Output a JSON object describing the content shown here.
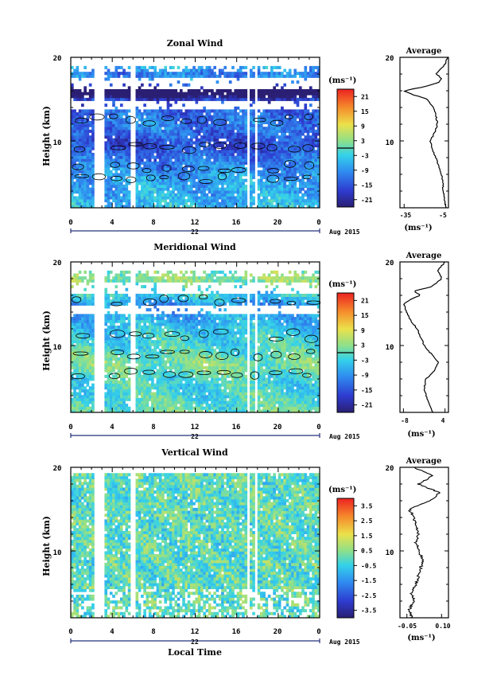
{
  "figure": {
    "x_axis_title": "Local Time",
    "date_label": "22",
    "date_suffix": "Aug 2015",
    "height_label": "Height (km)",
    "x_ticks": [
      "0",
      "4",
      "8",
      "12",
      "16",
      "20",
      "0"
    ],
    "y_ticks": [
      "20",
      "10"
    ]
  },
  "chart_data": [
    {
      "type": "heatmap",
      "title": "Zonal Wind",
      "ylabel": "Height (km)",
      "xlabel": "Local Time",
      "xlim": [
        0,
        24
      ],
      "ylim": [
        2,
        20
      ],
      "contours": true,
      "colorbar": {
        "unit": "(ms⁻¹)",
        "ticks": [
          "21",
          "15",
          "9",
          "3",
          "-3",
          "-9",
          "-15",
          "-21"
        ],
        "range": [
          -24,
          24
        ]
      },
      "average_profile": {
        "title": "Average",
        "xlabel": "(ms⁻¹)",
        "xticks": [
          "-35",
          "-5"
        ],
        "xlim": [
          -38,
          -3
        ],
        "heights": [
          2,
          3,
          4,
          5,
          6,
          7,
          8,
          9,
          10,
          11,
          12,
          13,
          14,
          15,
          15.5,
          16,
          16.5,
          17,
          17.5,
          18,
          19,
          20
        ],
        "values": [
          -5,
          -6,
          -7,
          -7,
          -8,
          -10,
          -12,
          -15,
          -16,
          -13,
          -11,
          -12,
          -14,
          -18,
          -28,
          -35,
          -20,
          -10,
          -8,
          -12,
          -6,
          -4
        ]
      }
    },
    {
      "type": "heatmap",
      "title": "Meridional Wind",
      "ylabel": "Height (km)",
      "xlabel": "Local Time",
      "xlim": [
        0,
        24
      ],
      "ylim": [
        2,
        20
      ],
      "contours": true,
      "colorbar": {
        "unit": "(ms⁻¹)",
        "ticks": [
          "21",
          "15",
          "9",
          "3",
          "-3",
          "-9",
          "-15",
          "-21"
        ],
        "range": [
          -24,
          24
        ]
      },
      "average_profile": {
        "title": "Average",
        "xlabel": "(ms⁻¹)",
        "xticks": [
          "-8",
          "4"
        ],
        "xlim": [
          -9,
          5
        ],
        "heights": [
          2,
          3,
          4,
          5,
          6,
          7,
          8,
          9,
          10,
          11,
          12,
          13,
          14,
          15,
          15.5,
          16,
          16.5,
          17,
          18,
          19,
          20
        ],
        "values": [
          0.5,
          -0.5,
          -1.5,
          -2,
          -1.5,
          1,
          2,
          0,
          -2,
          -3,
          -4,
          -6,
          -7,
          -8,
          -6,
          -3,
          -5,
          0,
          3,
          2,
          4
        ]
      }
    },
    {
      "type": "heatmap",
      "title": "Vertical Wind",
      "ylabel": "Height (km)",
      "xlabel": "Local Time",
      "xlim": [
        0,
        24
      ],
      "ylim": [
        2,
        20
      ],
      "contours": false,
      "colorbar": {
        "unit": "(ms⁻¹)",
        "ticks": [
          "3.5",
          "2.5",
          "1.5",
          "0.5",
          "-0.5",
          "-1.5",
          "-2.5",
          "-3.5"
        ],
        "range": [
          -4,
          4
        ]
      },
      "average_profile": {
        "title": "Average",
        "xlabel": "(ms⁻¹)",
        "xticks": [
          "-0.05",
          "0.10"
        ],
        "xlim": [
          -0.08,
          0.13
        ],
        "heights": [
          2,
          3,
          4,
          5,
          6,
          7,
          8,
          9,
          10,
          11,
          12,
          13,
          14,
          15,
          16,
          17,
          18,
          19,
          20
        ],
        "values": [
          -0.03,
          -0.04,
          -0.02,
          -0.03,
          -0.01,
          0.0,
          0.01,
          0.02,
          0.0,
          -0.01,
          0.0,
          -0.01,
          -0.02,
          -0.04,
          0.05,
          0.09,
          0.0,
          0.06,
          -0.02
        ]
      }
    }
  ]
}
